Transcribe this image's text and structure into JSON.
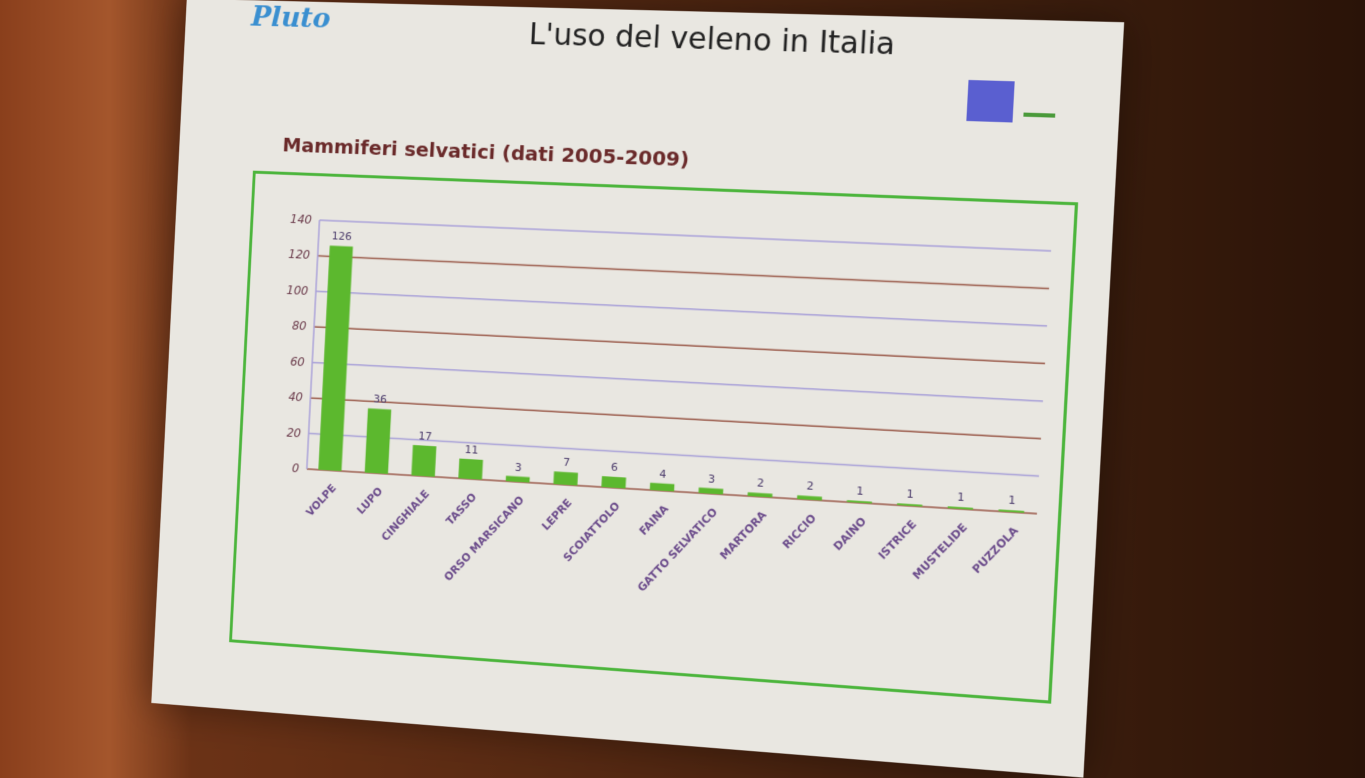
{
  "header": {
    "logo": "Pluto",
    "title": "L'uso del veleno in Italia",
    "eu_icon": "eu-flag-icon",
    "life_icon": "life-logo-icon"
  },
  "chart_data": {
    "type": "bar",
    "title": "Mammiferi selvatici (dati 2005-2009)",
    "categories": [
      "VOLPE",
      "LUPO",
      "CINGHIALE",
      "TASSO",
      "ORSO MARSICANO",
      "LEPRE",
      "SCOIATTOLO",
      "FAINA",
      "GATTO SELVATICO",
      "MARTORA",
      "RICCIO",
      "DAINO",
      "ISTRICE",
      "MUSTELIDE",
      "PUZZOLA"
    ],
    "values": [
      126,
      36,
      17,
      11,
      3,
      7,
      6,
      4,
      3,
      2,
      2,
      1,
      1,
      1,
      1
    ],
    "ylim": [
      0,
      140
    ],
    "yticks": [
      0,
      20,
      40,
      60,
      80,
      100,
      120,
      140
    ],
    "grid": true,
    "bar_color": "#5cb82e",
    "frame_color": "#4cb53c"
  }
}
